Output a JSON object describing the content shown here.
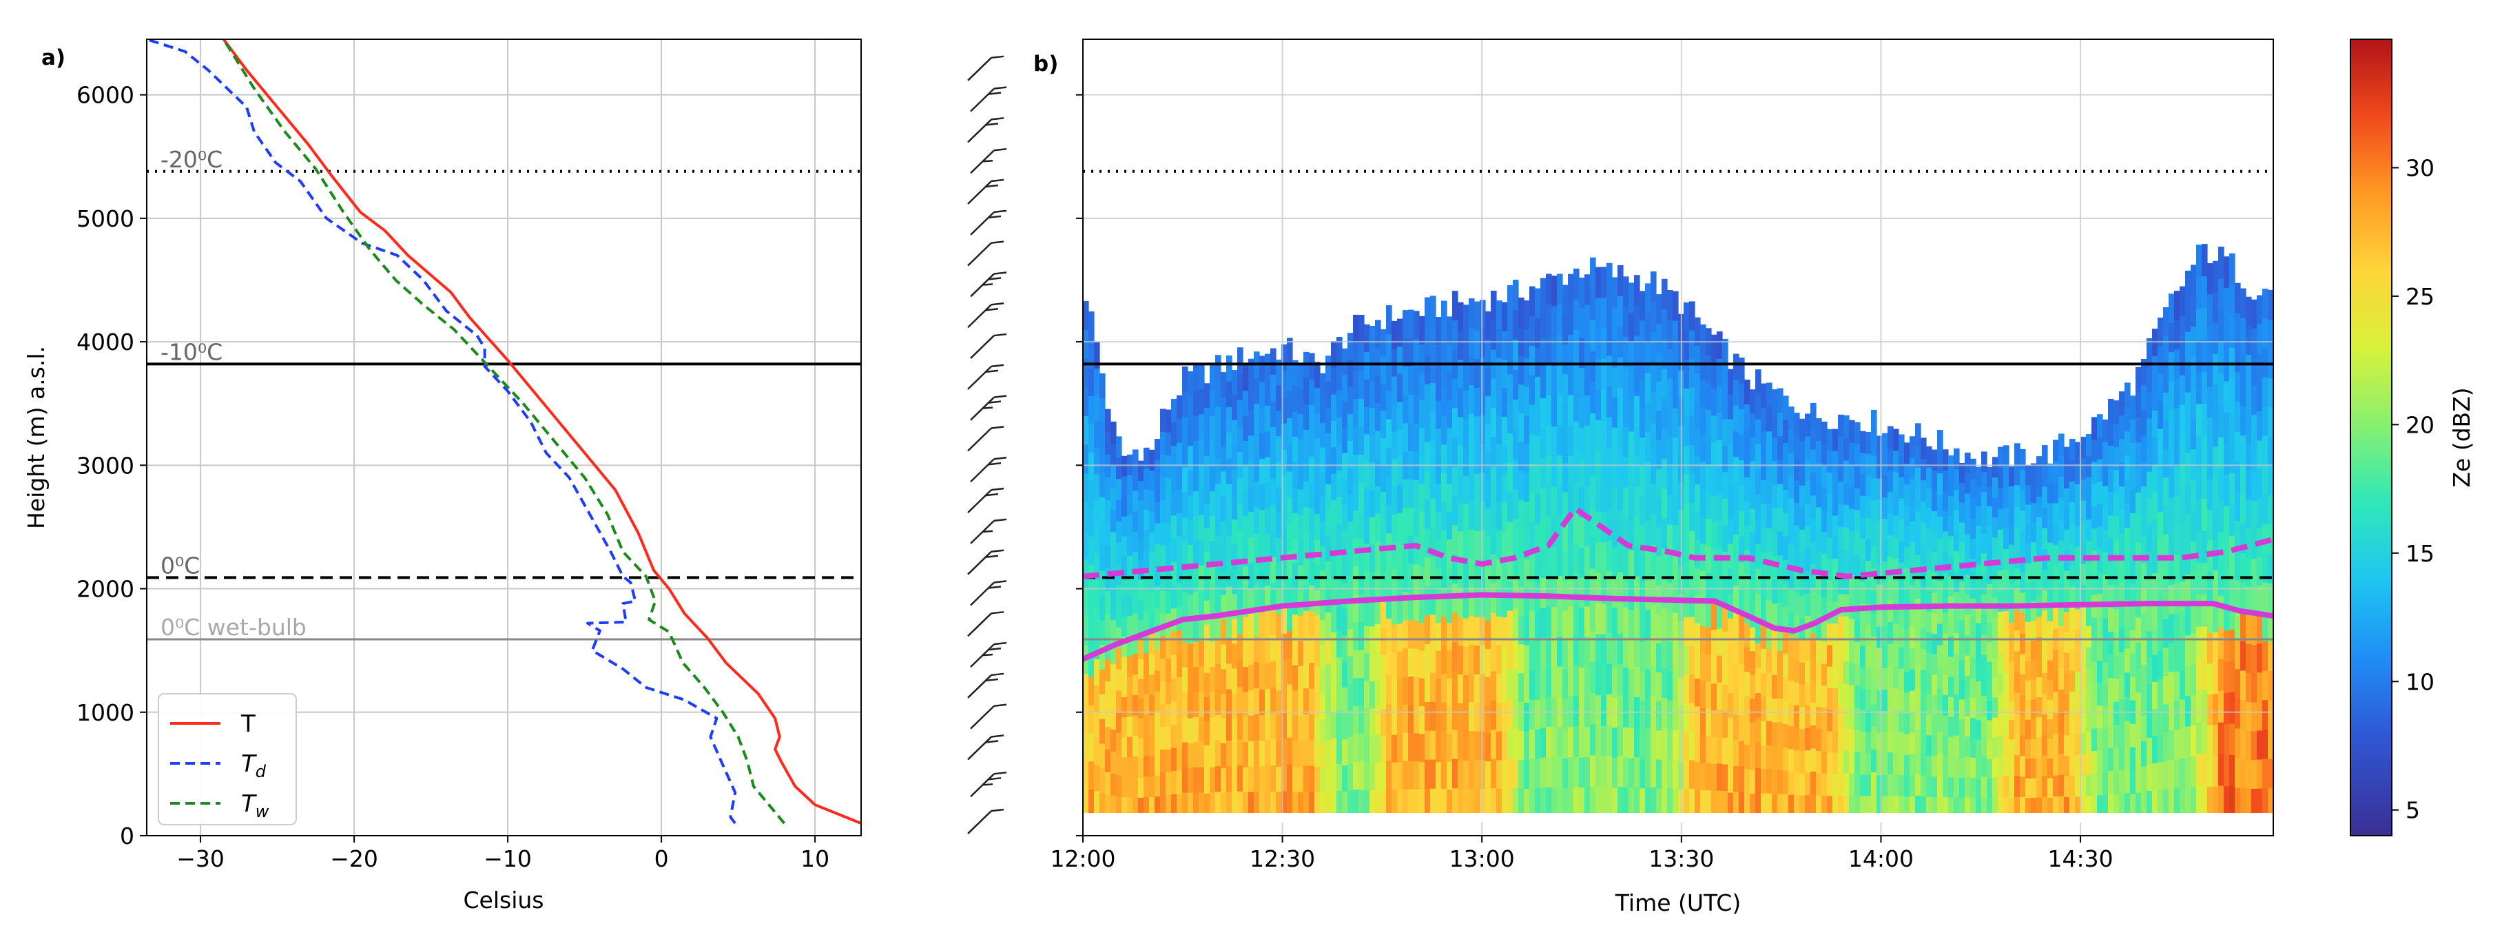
{
  "panels": {
    "a": "a)",
    "b": "b)"
  },
  "colors": {
    "T": "#ff2a1a",
    "Td": "#1e3cff",
    "Tw": "#1a8a1a",
    "melting_layer": "#d63ad6",
    "grid": "#c8c8c8"
  },
  "chart_data": [
    {
      "type": "line",
      "panel": "a",
      "xlabel": "Celsius",
      "ylabel": "Height (m) a.s.l.",
      "xlim": [
        -33.5,
        13
      ],
      "ylim": [
        0,
        6450
      ],
      "xticks": [
        -30,
        -20,
        -10,
        0,
        10
      ],
      "yticks": [
        0,
        1000,
        2000,
        3000,
        4000,
        5000,
        6000
      ],
      "grid": true,
      "legend": "bottom-left",
      "series": [
        {
          "name": "T",
          "key": "T",
          "style": "solid",
          "points": [
            [
              13,
              100
            ],
            [
              12,
              150
            ],
            [
              10,
              250
            ],
            [
              8.7,
              400
            ],
            [
              7.8,
              600
            ],
            [
              7.4,
              700
            ],
            [
              7.7,
              800
            ],
            [
              7.4,
              950
            ],
            [
              6.3,
              1150
            ],
            [
              4.2,
              1400
            ],
            [
              3,
              1600
            ],
            [
              1.5,
              1800
            ],
            [
              0.5,
              2000
            ],
            [
              -0.5,
              2150
            ],
            [
              -1.5,
              2450
            ],
            [
              -3,
              2800
            ],
            [
              -5,
              3100
            ],
            [
              -7,
              3400
            ],
            [
              -9,
              3700
            ],
            [
              -10,
              3850
            ],
            [
              -12.5,
              4200
            ],
            [
              -13.7,
              4400
            ],
            [
              -16.5,
              4700
            ],
            [
              -18,
              4900
            ],
            [
              -19.6,
              5050
            ],
            [
              -21.5,
              5350
            ],
            [
              -23,
              5600
            ],
            [
              -25,
              5900
            ],
            [
              -27,
              6200
            ],
            [
              -28.5,
              6450
            ]
          ]
        },
        {
          "name": "T",
          "subscript": "d",
          "key": "Td",
          "style": "dashed",
          "points": [
            [
              4.8,
              100
            ],
            [
              4.5,
              150
            ],
            [
              4.8,
              350
            ],
            [
              3.9,
              600
            ],
            [
              3.2,
              800
            ],
            [
              3.6,
              950
            ],
            [
              1.5,
              1100
            ],
            [
              -1,
              1200
            ],
            [
              -2.5,
              1350
            ],
            [
              -4.5,
              1500
            ],
            [
              -4,
              1660
            ],
            [
              -4.8,
              1720
            ],
            [
              -2.3,
              1730
            ],
            [
              -2.5,
              1880
            ],
            [
              -1.7,
              1900
            ],
            [
              -2,
              2050
            ],
            [
              -2.5,
              2100
            ],
            [
              -3.3,
              2300
            ],
            [
              -4.2,
              2500
            ],
            [
              -5.1,
              2700
            ],
            [
              -6,
              2900
            ],
            [
              -7.5,
              3100
            ],
            [
              -8.5,
              3350
            ],
            [
              -10,
              3600
            ],
            [
              -11.5,
              3800
            ],
            [
              -11.5,
              3950
            ],
            [
              -12,
              4050
            ],
            [
              -14,
              4250
            ],
            [
              -15.5,
              4500
            ],
            [
              -17.2,
              4700
            ],
            [
              -19.5,
              4800
            ],
            [
              -21.8,
              5000
            ],
            [
              -23.5,
              5300
            ],
            [
              -25.1,
              5450
            ],
            [
              -26.5,
              5700
            ],
            [
              -27,
              5900
            ],
            [
              -29.5,
              6200
            ],
            [
              -31,
              6350
            ],
            [
              -33.5,
              6450
            ]
          ]
        },
        {
          "name": "T",
          "subscript": "w",
          "key": "Tw",
          "style": "dashed",
          "points": [
            [
              8,
              100
            ],
            [
              7,
              250
            ],
            [
              6,
              400
            ],
            [
              5.6,
              600
            ],
            [
              5,
              800
            ],
            [
              4,
              1000
            ],
            [
              2.8,
              1200
            ],
            [
              1.4,
              1400
            ],
            [
              0.5,
              1650
            ],
            [
              -0.8,
              1750
            ],
            [
              -0.4,
              1900
            ],
            [
              -1,
              2100
            ],
            [
              -2.5,
              2300
            ],
            [
              -3.5,
              2600
            ],
            [
              -5,
              2900
            ],
            [
              -7,
              3200
            ],
            [
              -9,
              3500
            ],
            [
              -10.5,
              3700
            ],
            [
              -12,
              3900
            ],
            [
              -13.5,
              4100
            ],
            [
              -15.5,
              4300
            ],
            [
              -17.3,
              4500
            ],
            [
              -19,
              4750
            ],
            [
              -20.7,
              5050
            ],
            [
              -22.5,
              5400
            ],
            [
              -24.5,
              5700
            ],
            [
              -26.5,
              6050
            ],
            [
              -28.5,
              6450
            ]
          ]
        }
      ],
      "reference_lines": [
        {
          "label": "-20⁰C",
          "y": 5380,
          "style": "dotted",
          "color": "#000000"
        },
        {
          "label": "-10⁰C",
          "y": 3820,
          "style": "solid",
          "color": "#000000"
        },
        {
          "label": "0⁰C",
          "y": 2090,
          "style": "dashed",
          "color": "#000000"
        },
        {
          "label": "0⁰C wet-bulb",
          "y": 1590,
          "style": "solid",
          "color": "#888888"
        }
      ]
    },
    {
      "type": "heatmap",
      "panel": "b",
      "xlabel": "Time (UTC)",
      "ylim": [
        0,
        6450
      ],
      "xlim_minutes": [
        0,
        179
      ],
      "xtick_labels": [
        "12:00",
        "12:30",
        "13:00",
        "13:30",
        "14:00",
        "14:30"
      ],
      "xtick_minutes": [
        0,
        30,
        60,
        90,
        120,
        150
      ],
      "grid": true,
      "reference_lines": [
        {
          "y": 5380,
          "style": "dotted"
        },
        {
          "y": 3820,
          "style": "solid"
        },
        {
          "y": 2090,
          "style": "dashed"
        },
        {
          "y": 1590,
          "style": "solid-gray"
        }
      ],
      "echo_top": [
        [
          0,
          4400
        ],
        [
          2,
          3900
        ],
        [
          4,
          3300
        ],
        [
          6,
          3050
        ],
        [
          8,
          3150
        ],
        [
          10,
          3100
        ],
        [
          12,
          3450
        ],
        [
          15,
          3700
        ],
        [
          20,
          3800
        ],
        [
          25,
          3900
        ],
        [
          30,
          3950
        ],
        [
          35,
          3800
        ],
        [
          40,
          4100
        ],
        [
          45,
          4200
        ],
        [
          55,
          4300
        ],
        [
          65,
          4400
        ],
        [
          75,
          4600
        ],
        [
          80,
          4550
        ],
        [
          85,
          4500
        ],
        [
          90,
          4300
        ],
        [
          95,
          4000
        ],
        [
          100,
          3700
        ],
        [
          105,
          3550
        ],
        [
          110,
          3400
        ],
        [
          115,
          3400
        ],
        [
          125,
          3250
        ],
        [
          135,
          3050
        ],
        [
          145,
          3100
        ],
        [
          152,
          3350
        ],
        [
          158,
          3700
        ],
        [
          163,
          4300
        ],
        [
          168,
          4750
        ],
        [
          172,
          4650
        ],
        [
          175,
          4450
        ],
        [
          179,
          4400
        ]
      ],
      "melting_layer_top": [
        [
          0,
          2100
        ],
        [
          10,
          2150
        ],
        [
          20,
          2200
        ],
        [
          30,
          2250
        ],
        [
          40,
          2300
        ],
        [
          50,
          2350
        ],
        [
          55,
          2250
        ],
        [
          60,
          2200
        ],
        [
          65,
          2250
        ],
        [
          70,
          2350
        ],
        [
          74,
          2650
        ],
        [
          78,
          2500
        ],
        [
          82,
          2350
        ],
        [
          88,
          2300
        ],
        [
          92,
          2250
        ],
        [
          100,
          2250
        ],
        [
          108,
          2150
        ],
        [
          115,
          2100
        ],
        [
          125,
          2150
        ],
        [
          135,
          2200
        ],
        [
          145,
          2250
        ],
        [
          155,
          2250
        ],
        [
          165,
          2250
        ],
        [
          172,
          2300
        ],
        [
          179,
          2400
        ]
      ],
      "melting_layer_bottom": [
        [
          0,
          1430
        ],
        [
          5,
          1550
        ],
        [
          10,
          1650
        ],
        [
          15,
          1750
        ],
        [
          20,
          1780
        ],
        [
          25,
          1820
        ],
        [
          30,
          1860
        ],
        [
          40,
          1900
        ],
        [
          50,
          1930
        ],
        [
          60,
          1950
        ],
        [
          70,
          1940
        ],
        [
          80,
          1920
        ],
        [
          95,
          1900
        ],
        [
          100,
          1780
        ],
        [
          104,
          1680
        ],
        [
          107,
          1660
        ],
        [
          110,
          1720
        ],
        [
          114,
          1830
        ],
        [
          120,
          1850
        ],
        [
          130,
          1860
        ],
        [
          140,
          1860
        ],
        [
          150,
          1870
        ],
        [
          160,
          1880
        ],
        [
          170,
          1880
        ],
        [
          174,
          1820
        ],
        [
          179,
          1780
        ]
      ],
      "barb_heights": [
        100,
        400,
        700,
        950,
        1200,
        1450,
        1700,
        1950,
        2200,
        2450,
        2700,
        2950,
        3200,
        3450,
        3700,
        3950,
        4200,
        4450,
        4700,
        4950,
        5200,
        5450,
        5700,
        5950,
        6200
      ]
    },
    {
      "type": "colorbar",
      "label": "Ze (dBZ)",
      "range": [
        4,
        35
      ],
      "ticks": [
        5,
        10,
        15,
        20,
        25,
        30
      ],
      "stops": [
        {
          "v": 4,
          "c": "#3a2f94"
        },
        {
          "v": 8,
          "c": "#2f59d6"
        },
        {
          "v": 11,
          "c": "#1f8ff5"
        },
        {
          "v": 14,
          "c": "#1ec7f0"
        },
        {
          "v": 17,
          "c": "#2fe8b8"
        },
        {
          "v": 20,
          "c": "#88f070"
        },
        {
          "v": 23,
          "c": "#d9f13a"
        },
        {
          "v": 26,
          "c": "#ffd43a"
        },
        {
          "v": 29,
          "c": "#ff9a24"
        },
        {
          "v": 32,
          "c": "#f04a1c"
        },
        {
          "v": 35,
          "c": "#b21418"
        }
      ]
    }
  ]
}
